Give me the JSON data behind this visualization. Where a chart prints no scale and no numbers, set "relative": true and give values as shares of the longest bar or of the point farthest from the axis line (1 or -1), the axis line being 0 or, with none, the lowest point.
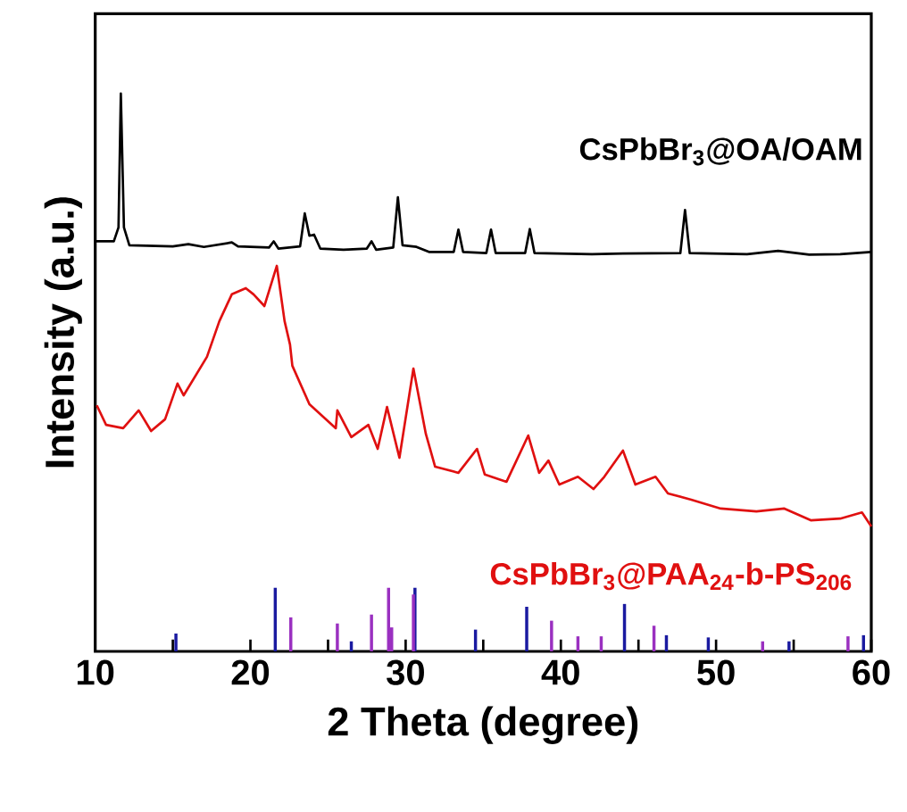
{
  "chart_data": {
    "type": "line",
    "relative": true,
    "xlabel": "2 Theta (degree)",
    "ylabel": "Intensity (a.u.)",
    "xlim": [
      10,
      60
    ],
    "xticks": [
      10,
      {
        "value": 15,
        "label": null
      },
      20,
      {
        "value": 25,
        "label": null
      },
      30,
      {
        "value": 35,
        "label": null
      },
      40,
      {
        "value": 45,
        "label": null
      },
      50,
      {
        "value": 55,
        "label": null
      },
      60
    ],
    "tick_labels": "x",
    "series": [
      {
        "name": "CsPbBr$_{3}$@OA/OAM",
        "color": "#000000",
        "x": [
          10.0,
          11.2,
          11.5,
          11.65,
          11.85,
          12.2,
          15,
          16,
          17,
          18.8,
          19.2,
          21.2,
          21.5,
          21.8,
          23.2,
          23.5,
          23.8,
          24.1,
          24.5,
          26,
          27.5,
          27.8,
          28.1,
          29.2,
          29.5,
          29.8,
          30.7,
          31.5,
          33.1,
          33.4,
          33.7,
          35.2,
          35.5,
          35.8,
          37.7,
          38.0,
          38.3,
          42,
          44,
          47.7,
          48.0,
          48.3,
          52,
          54,
          56,
          58,
          60
        ],
        "values": [
          0.735,
          0.735,
          0.76,
          1.0,
          0.76,
          0.728,
          0.726,
          0.73,
          0.725,
          0.733,
          0.726,
          0.724,
          0.735,
          0.722,
          0.726,
          0.785,
          0.745,
          0.747,
          0.722,
          0.72,
          0.722,
          0.735,
          0.72,
          0.724,
          0.814,
          0.728,
          0.725,
          0.716,
          0.716,
          0.756,
          0.716,
          0.714,
          0.756,
          0.714,
          0.714,
          0.757,
          0.714,
          0.712,
          0.713,
          0.714,
          0.791,
          0.714,
          0.712,
          0.718,
          0.711,
          0.712,
          0.716
        ]
      },
      {
        "name": "CsPbBr$_{3}$@PAA$_{24}$-b-PS$_{206}$",
        "color": "#e01010",
        "x": [
          10.1,
          10.7,
          11.8,
          12.8,
          13.6,
          14.5,
          15.3,
          15.7,
          17.2,
          18.0,
          18.8,
          19.7,
          20.2,
          20.9,
          21.7,
          22.2,
          22.55,
          22.7,
          23.8,
          25.5,
          25.6,
          26.5,
          27.6,
          28.2,
          28.8,
          29.6,
          30.5,
          31.3,
          31.9,
          33.4,
          34.6,
          35.1,
          36.5,
          37.9,
          38.6,
          39.2,
          39.9,
          41.1,
          42.1,
          42.8,
          44.0,
          44.8,
          46.1,
          46.9,
          48.4,
          50.3,
          52.6,
          54.4,
          56.1,
          58.0,
          59.4,
          60
        ],
        "values": [
          0.441,
          0.406,
          0.4,
          0.432,
          0.395,
          0.416,
          0.48,
          0.459,
          0.528,
          0.592,
          0.64,
          0.651,
          0.64,
          0.619,
          0.691,
          0.592,
          0.55,
          0.512,
          0.443,
          0.4,
          0.432,
          0.384,
          0.406,
          0.363,
          0.438,
          0.347,
          0.507,
          0.39,
          0.331,
          0.32,
          0.363,
          0.317,
          0.304,
          0.387,
          0.32,
          0.342,
          0.299,
          0.313,
          0.291,
          0.313,
          0.36,
          0.299,
          0.313,
          0.283,
          0.272,
          0.256,
          0.251,
          0.256,
          0.235,
          0.238,
          0.249,
          0.224
        ]
      },
      {
        "color": "#1a1aa0",
        "type": "bar",
        "x": [
          15.2,
          21.6,
          26.5,
          30.6,
          34.5,
          37.8,
          44.1,
          46.8,
          49.5,
          54.7,
          59.5
        ],
        "values": [
          0.032,
          0.114,
          0.018,
          0.114,
          0.039,
          0.08,
          0.085,
          0.029,
          0.025,
          0.018,
          0.029
        ]
      },
      {
        "color": "#9a30c0",
        "type": "bar",
        "x": [
          22.6,
          25.6,
          27.8,
          28.9,
          29.1,
          30.5,
          39.4,
          41.1,
          42.6,
          46.0,
          53.0,
          58.5
        ],
        "values": [
          0.061,
          0.05,
          0.066,
          0.114,
          0.043,
          0.102,
          0.055,
          0.027,
          0.027,
          0.046,
          0.018,
          0.027
        ]
      }
    ]
  }
}
